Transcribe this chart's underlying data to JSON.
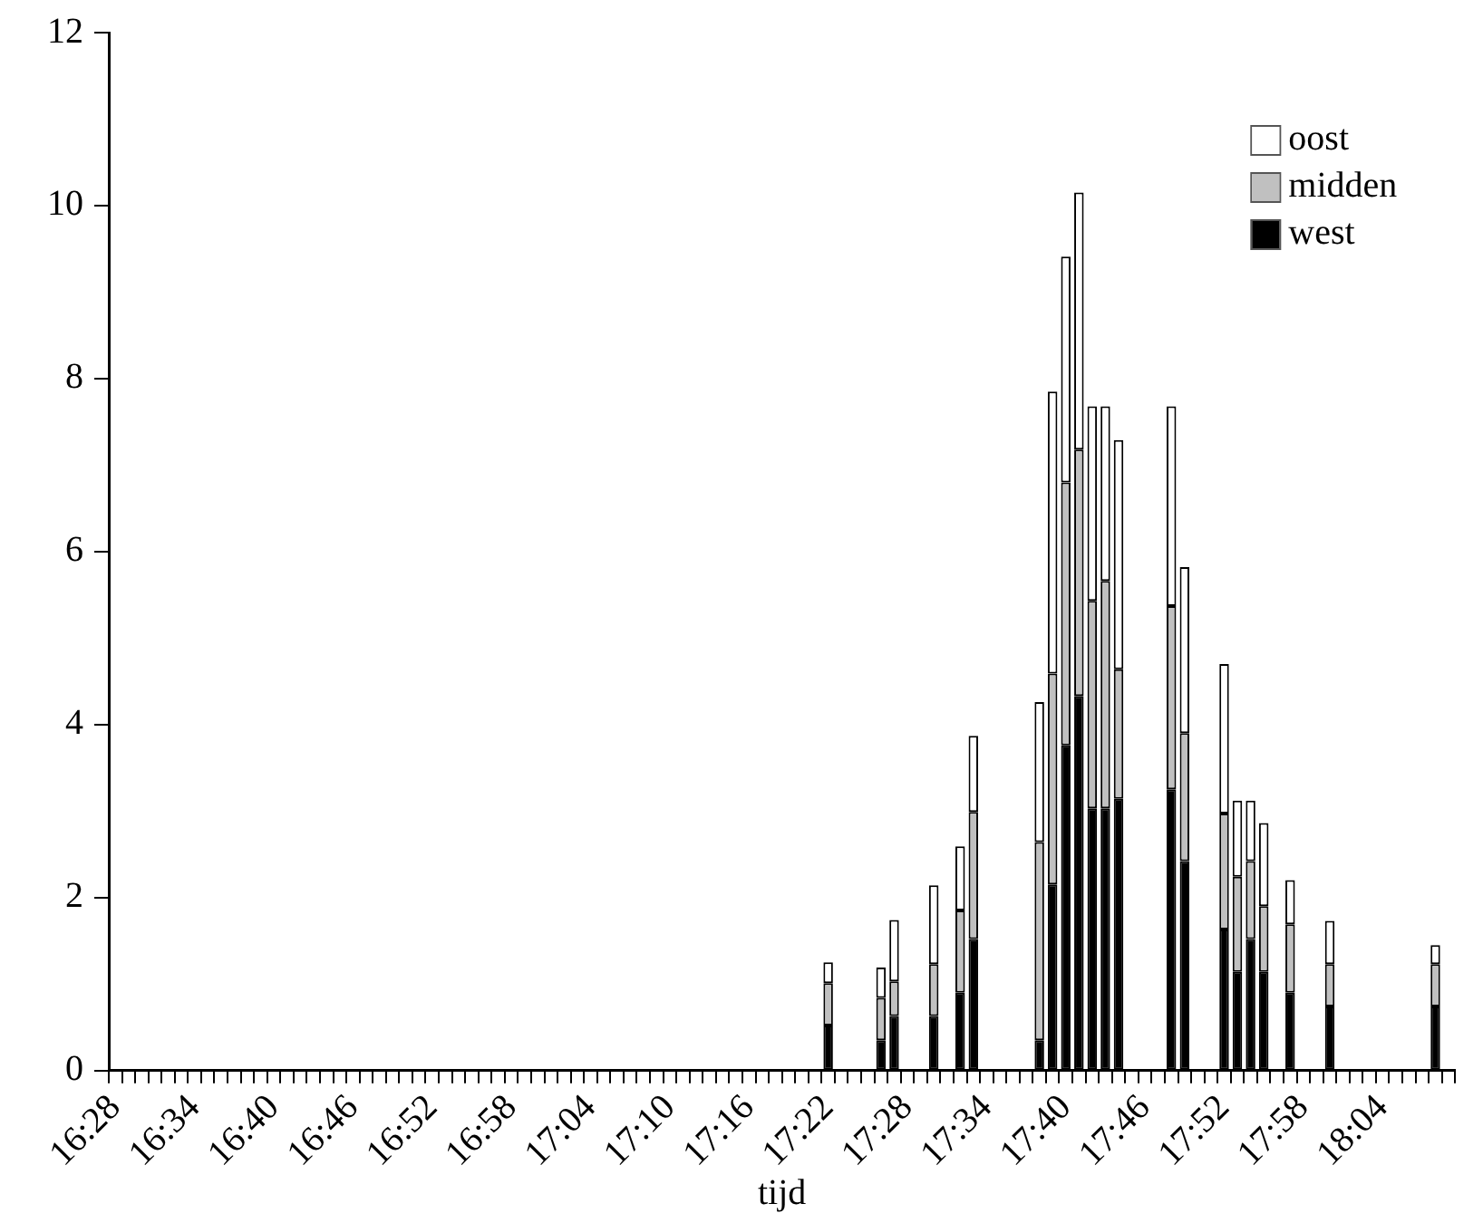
{
  "chart_data": {
    "type": "bar",
    "stacked": true,
    "xlabel": "tijd",
    "legend": "top right",
    "ylim": [
      0,
      12
    ],
    "yticks": [
      0,
      2,
      4,
      6,
      8,
      10,
      12
    ],
    "categories": [
      "16:28",
      null,
      null,
      null,
      null,
      null,
      "16:34",
      null,
      null,
      null,
      null,
      null,
      "16:40",
      null,
      null,
      null,
      null,
      null,
      "16:46",
      null,
      null,
      null,
      null,
      null,
      "16:52",
      null,
      null,
      null,
      null,
      null,
      "16:58",
      null,
      null,
      null,
      null,
      null,
      "17:04",
      null,
      null,
      null,
      null,
      null,
      "17:10",
      null,
      null,
      null,
      null,
      null,
      "17:16",
      null,
      null,
      null,
      null,
      null,
      "17:22",
      null,
      null,
      null,
      null,
      null,
      "17:28",
      null,
      null,
      null,
      null,
      null,
      "17:34",
      null,
      null,
      null,
      null,
      null,
      "17:40",
      null,
      null,
      null,
      null,
      null,
      "17:46",
      null,
      null,
      null,
      null,
      null,
      "17:52",
      null,
      null,
      null,
      null,
      null,
      "17:58",
      null,
      null,
      null,
      null,
      null,
      "18:04",
      null,
      null,
      null,
      null,
      null
    ],
    "series": [
      {
        "name": "west",
        "color": "#000000",
        "values": [
          null,
          null,
          null,
          null,
          null,
          null,
          null,
          null,
          null,
          null,
          null,
          null,
          null,
          null,
          null,
          null,
          null,
          null,
          null,
          null,
          null,
          null,
          null,
          null,
          null,
          null,
          null,
          null,
          null,
          null,
          null,
          null,
          null,
          null,
          null,
          null,
          null,
          null,
          null,
          null,
          null,
          null,
          null,
          null,
          null,
          null,
          null,
          null,
          null,
          null,
          null,
          null,
          null,
          null,
          0.52,
          null,
          null,
          null,
          0.35,
          0.63,
          null,
          null,
          0.63,
          null,
          0.9,
          1.52,
          null,
          null,
          null,
          null,
          0.35,
          2.15,
          3.76,
          4.33,
          3.03,
          3.03,
          3.14,
          null,
          null,
          null,
          3.25,
          2.42,
          null,
          null,
          1.63,
          1.14,
          1.52,
          1.14,
          null,
          0.9,
          null,
          null,
          0.74,
          null,
          null,
          null,
          null,
          null,
          null,
          null,
          0.74,
          null
        ]
      },
      {
        "name": "midden",
        "color": "#c0c0c0",
        "values": [
          null,
          null,
          null,
          null,
          null,
          null,
          null,
          null,
          null,
          null,
          null,
          null,
          null,
          null,
          null,
          null,
          null,
          null,
          null,
          null,
          null,
          null,
          null,
          null,
          null,
          null,
          null,
          null,
          null,
          null,
          null,
          null,
          null,
          null,
          null,
          null,
          null,
          null,
          null,
          null,
          null,
          null,
          null,
          null,
          null,
          null,
          null,
          null,
          null,
          null,
          null,
          null,
          null,
          null,
          0.49,
          null,
          null,
          null,
          0.49,
          0.4,
          null,
          null,
          0.6,
          null,
          0.95,
          1.47,
          null,
          null,
          null,
          null,
          2.29,
          2.44,
          3.04,
          2.85,
          2.4,
          2.63,
          1.5,
          null,
          null,
          null,
          2.12,
          1.48,
          null,
          null,
          1.34,
          1.1,
          0.9,
          0.76,
          null,
          0.79,
          null,
          null,
          0.49,
          null,
          null,
          null,
          null,
          null,
          null,
          null,
          0.49,
          null
        ]
      },
      {
        "name": "oost",
        "color": "#ffffff",
        "values": [
          null,
          null,
          null,
          null,
          null,
          null,
          null,
          null,
          null,
          null,
          null,
          null,
          null,
          null,
          null,
          null,
          null,
          null,
          null,
          null,
          null,
          null,
          null,
          null,
          null,
          null,
          null,
          null,
          null,
          null,
          null,
          null,
          null,
          null,
          null,
          null,
          null,
          null,
          null,
          null,
          null,
          null,
          null,
          null,
          null,
          null,
          null,
          null,
          null,
          null,
          null,
          null,
          null,
          null,
          0.24,
          null,
          null,
          null,
          0.35,
          0.71,
          null,
          null,
          0.91,
          null,
          0.74,
          0.88,
          null,
          null,
          null,
          null,
          1.62,
          3.26,
          2.61,
          2.97,
          2.25,
          2.02,
          2.65,
          null,
          null,
          null,
          2.31,
          1.92,
          null,
          null,
          1.73,
          0.88,
          0.7,
          0.96,
          null,
          0.51,
          null,
          null,
          0.5,
          null,
          null,
          null,
          null,
          null,
          null,
          null,
          0.22,
          null
        ]
      }
    ]
  }
}
